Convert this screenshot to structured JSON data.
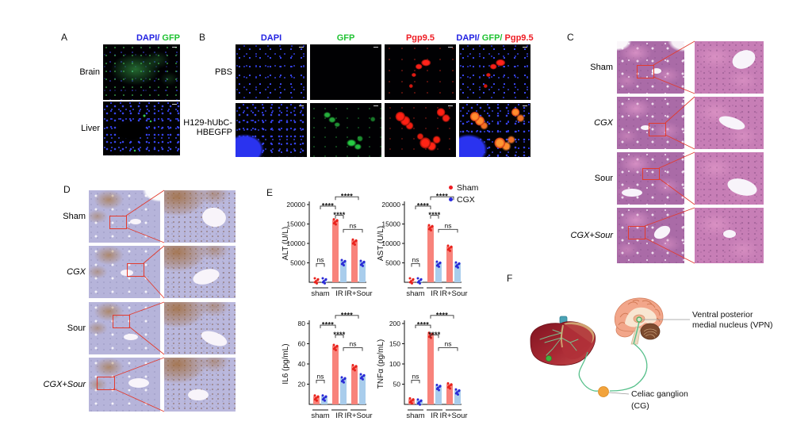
{
  "panel_a": {
    "letter": "A",
    "title": [
      {
        "text": "DAPI/",
        "color": "#2222e2"
      },
      {
        "text": " GFP",
        "color": "#1fc232"
      }
    ],
    "rows": [
      "Brain",
      "Liver"
    ]
  },
  "panel_b": {
    "letter": "B",
    "col_titles": [
      [
        {
          "text": "DAPI",
          "color": "#2222e2"
        }
      ],
      [
        {
          "text": "GFP",
          "color": "#1fc232"
        }
      ],
      [
        {
          "text": "Pgp9.5",
          "color": "#ee1c23"
        }
      ],
      [
        {
          "text": "DAPI/",
          "color": "#2222e2"
        },
        {
          "text": " GFP/",
          "color": "#1fc232"
        },
        {
          "text": " Pgp9.5",
          "color": "#ee1c23"
        }
      ]
    ],
    "rows": [
      {
        "lines": [
          "PBS",
          ""
        ]
      },
      {
        "lines": [
          "H129-hUbC-",
          "HBEGFP"
        ]
      }
    ]
  },
  "panel_c": {
    "letter": "C",
    "rows": [
      {
        "label": "Sham"
      },
      {
        "label": "CGX"
      },
      {
        "label": "Sour"
      },
      {
        "label": "CGX+Sour"
      }
    ]
  },
  "panel_d": {
    "letter": "D",
    "rows": [
      {
        "label": "Sham"
      },
      {
        "label": "CGX"
      },
      {
        "label": "Sour"
      },
      {
        "label": "CGX+Sour"
      }
    ]
  },
  "panel_e": {
    "letter": "E",
    "legend": [
      {
        "label": "Sham",
        "color": "#ee1c23"
      },
      {
        "label": "CGX",
        "color": "#2a2ae0"
      }
    ],
    "legend_position": "top-right"
  },
  "panel_f": {
    "letter": "F",
    "vpn_label": [
      "Ventral posterior",
      "medial nucleus (VPN)"
    ],
    "cg_label": [
      "Celiac ganglion",
      "(CG)"
    ],
    "colors": {
      "pathway_green": "#57c08b",
      "ganglion_orange": "#f2a33c"
    }
  },
  "chart_data": [
    {
      "id": "ALT",
      "type": "bar",
      "title": "",
      "xlabel": "",
      "ylabel": "ALT (U/L)",
      "ylim": [
        0,
        20000
      ],
      "yticks": [
        5000,
        10000,
        15000,
        20000
      ],
      "categories": [
        "sham",
        "IR",
        "IR+Sour"
      ],
      "series": [
        {
          "name": "Sham",
          "bar_color": "#f8837b",
          "dot_color": "#e8231d",
          "values": [
            250,
            16000,
            10800
          ]
        },
        {
          "name": "CGX",
          "bar_color": "#a9cdec",
          "dot_color": "#2b2bd6",
          "values": [
            200,
            5500,
            5300
          ]
        }
      ],
      "grid": false,
      "significance": [
        {
          "label": "ns",
          "a": [
            0,
            0
          ],
          "b": [
            0,
            1
          ],
          "y": 0.76
        },
        {
          "label": "****",
          "a": [
            0,
            0.5
          ],
          "b": [
            1,
            0
          ],
          "y": 0.02
        },
        {
          "label": "****",
          "a": [
            1,
            0
          ],
          "b": [
            2,
            0.5
          ],
          "y": -0.1
        },
        {
          "label": "****",
          "a": [
            1,
            0
          ],
          "b": [
            1,
            1
          ],
          "y": 0.14
        },
        {
          "label": "ns",
          "a": [
            1,
            1
          ],
          "b": [
            2,
            1
          ],
          "y": 0.32
        }
      ]
    },
    {
      "id": "AST",
      "type": "bar",
      "title": "",
      "xlabel": "",
      "ylabel": "AST (U/L)",
      "ylim": [
        0,
        20000
      ],
      "yticks": [
        5000,
        10000,
        15000,
        20000
      ],
      "categories": [
        "sham",
        "IR",
        "IR+Sour"
      ],
      "series": [
        {
          "name": "Sham",
          "bar_color": "#f8837b",
          "dot_color": "#e8231d",
          "values": [
            250,
            14500,
            9200
          ]
        },
        {
          "name": "CGX",
          "bar_color": "#a9cdec",
          "dot_color": "#2b2bd6",
          "values": [
            200,
            5100,
            4900
          ]
        }
      ],
      "grid": false,
      "significance": [
        {
          "label": "ns",
          "a": [
            0,
            0
          ],
          "b": [
            0,
            1
          ],
          "y": 0.76
        },
        {
          "label": "****",
          "a": [
            0,
            0.5
          ],
          "b": [
            1,
            0
          ],
          "y": 0.02
        },
        {
          "label": "****",
          "a": [
            1,
            0
          ],
          "b": [
            2,
            0.5
          ],
          "y": -0.1
        },
        {
          "label": "****",
          "a": [
            1,
            0
          ],
          "b": [
            1,
            1
          ],
          "y": 0.14
        },
        {
          "label": "ns",
          "a": [
            1,
            1
          ],
          "b": [
            2,
            1
          ],
          "y": 0.32
        }
      ]
    },
    {
      "id": "IL6",
      "type": "bar",
      "title": "",
      "xlabel": "",
      "ylabel": "IL6 (pg/mL)",
      "ylim": [
        0,
        80
      ],
      "yticks": [
        20,
        40,
        60,
        80
      ],
      "categories": [
        "sham",
        "IR",
        "IR+Sour"
      ],
      "series": [
        {
          "name": "Sham",
          "bar_color": "#f8837b",
          "dot_color": "#e8231d",
          "values": [
            8,
            58,
            38
          ]
        },
        {
          "name": "CGX",
          "bar_color": "#a9cdec",
          "dot_color": "#2b2bd6",
          "values": [
            8,
            26,
            29
          ]
        }
      ],
      "grid": false,
      "significance": [
        {
          "label": "ns",
          "a": [
            0,
            0
          ],
          "b": [
            0,
            1
          ],
          "y": 0.7
        },
        {
          "label": "****",
          "a": [
            0,
            0.5
          ],
          "b": [
            1,
            0
          ],
          "y": 0.02
        },
        {
          "label": "****",
          "a": [
            1,
            0
          ],
          "b": [
            2,
            0.5
          ],
          "y": -0.1
        },
        {
          "label": "****",
          "a": [
            1,
            0
          ],
          "b": [
            1,
            1
          ],
          "y": 0.14
        },
        {
          "label": "ns",
          "a": [
            1,
            1
          ],
          "b": [
            2,
            1
          ],
          "y": 0.3
        }
      ]
    },
    {
      "id": "TNFa",
      "type": "bar",
      "title": "",
      "xlabel": "",
      "ylabel": "TNFα (pg/mL)",
      "ylim": [
        0,
        200
      ],
      "yticks": [
        50,
        100,
        150,
        200
      ],
      "categories": [
        "sham",
        "IR",
        "IR+Sour"
      ],
      "series": [
        {
          "name": "Sham",
          "bar_color": "#f8837b",
          "dot_color": "#e8231d",
          "values": [
            13,
            175,
            50
          ]
        },
        {
          "name": "CGX",
          "bar_color": "#a9cdec",
          "dot_color": "#2b2bd6",
          "values": [
            10,
            46,
            35
          ]
        }
      ],
      "grid": false,
      "significance": [
        {
          "label": "ns",
          "a": [
            0,
            0
          ],
          "b": [
            0,
            1
          ],
          "y": 0.7
        },
        {
          "label": "****",
          "a": [
            0,
            0.5
          ],
          "b": [
            1,
            0
          ],
          "y": 0.02
        },
        {
          "label": "****",
          "a": [
            1,
            0
          ],
          "b": [
            2,
            0.5
          ],
          "y": -0.1
        },
        {
          "label": "****",
          "a": [
            1,
            0
          ],
          "b": [
            1,
            1
          ],
          "y": 0.14
        },
        {
          "label": "ns",
          "a": [
            1,
            1
          ],
          "b": [
            2,
            1
          ],
          "y": 0.3
        }
      ]
    }
  ]
}
